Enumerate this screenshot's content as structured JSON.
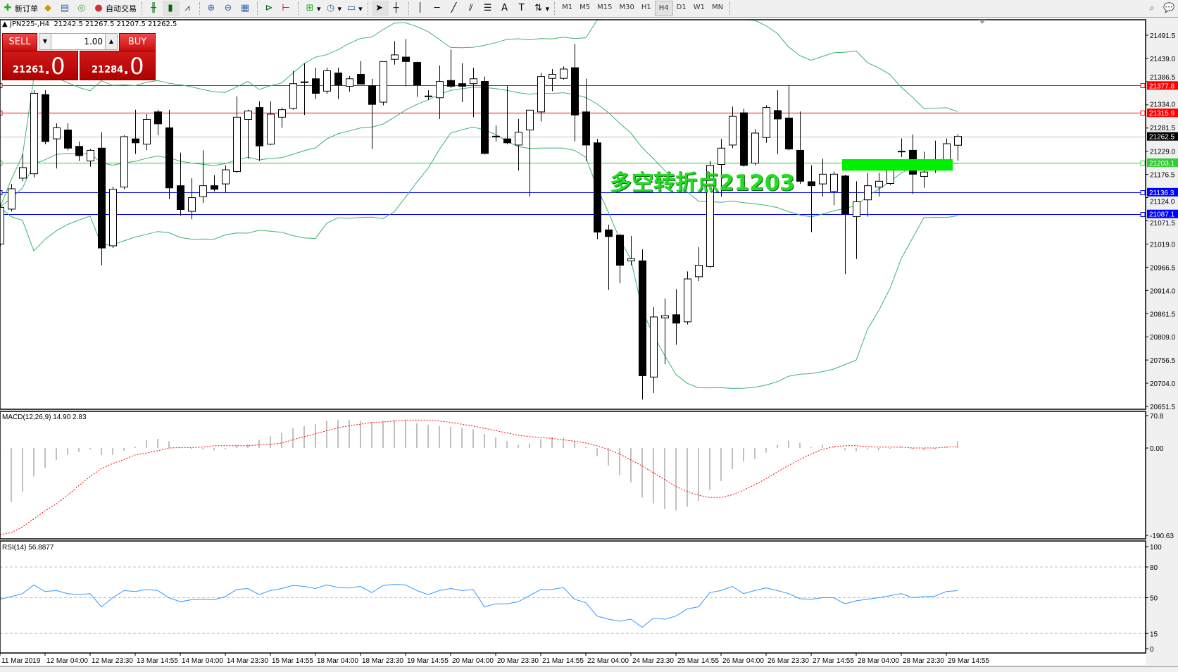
{
  "toolbar": {
    "new_order_label": "新订单",
    "auto_trade_label": "自动交易",
    "timeframes": [
      "M1",
      "M5",
      "M15",
      "M30",
      "H1",
      "H4",
      "D1",
      "W1",
      "MN"
    ],
    "active_timeframe": "H4"
  },
  "chart_header": {
    "symbol": "JPN225-,H4",
    "ohlc": "21242.5 21267.5 21207.5 21262.5"
  },
  "one_click": {
    "sell_label": "SELL",
    "buy_label": "BUY",
    "lot": "1.00",
    "sell_price_main": "21261",
    "sell_price_frac": ".0",
    "buy_price_main": "21284",
    "buy_price_frac": ".0"
  },
  "annotation": {
    "text": "多空转折点21203",
    "color": "#22dd22",
    "zone_price_top": 21211,
    "zone_price_bottom": 21185
  },
  "chart_data": {
    "type": "candlestick",
    "price_axis_ticks": [
      "21491.5",
      "21439.0",
      "21386.5",
      "21334.0",
      "21281.5",
      "21229.0",
      "21176.5",
      "21124.0",
      "21071.5",
      "21019.0",
      "20966.5",
      "20914.0",
      "20861.5",
      "20809.0",
      "20756.5",
      "20704.0",
      "20651.5"
    ],
    "price_range": [
      20651.5,
      21491.5
    ],
    "time_labels": [
      "11 Mar 2019",
      "12 Mar 04:00",
      "12 Mar 23:30",
      "13 Mar 14:55",
      "14 Mar 04:00",
      "14 Mar 23:30",
      "15 Mar 14:55",
      "18 Mar 04:00",
      "18 Mar 23:30",
      "19 Mar 14:55",
      "20 Mar 04:00",
      "20 Mar 23:30",
      "21 Mar 14:55",
      "22 Mar 04:00",
      "24 Mar 23:30",
      "25 Mar 14:55",
      "26 Mar 04:00",
      "26 Mar 23:30",
      "27 Mar 14:55",
      "28 Mar 04:00",
      "28 Mar 23:30",
      "29 Mar 14:55"
    ],
    "horizontal_lines": [
      {
        "price": 21377.8,
        "label": "21377.8",
        "color": "#ff0000"
      },
      {
        "price": 21315.9,
        "label": "21315.9",
        "color": "#ff0000"
      },
      {
        "price": 21262.5,
        "label": "21262.5",
        "color": "#c0c0c0",
        "label_bg": "#000000"
      },
      {
        "price": 21203.1,
        "label": "21203.1",
        "color": "#33cc33"
      },
      {
        "price": 21136.3,
        "label": "21136.3",
        "color": "#0000ff"
      },
      {
        "price": 21087.1,
        "label": "21087.1",
        "color": "#0000ff"
      }
    ],
    "bollinger": {
      "period": 20,
      "deviation": 2,
      "color": "#3cb371"
    },
    "candles_ohlc": [
      [
        21019,
        21112,
        21014,
        21102
      ],
      [
        21098,
        21155,
        21093,
        21144
      ],
      [
        21168,
        21223,
        21161,
        21192
      ],
      [
        21178,
        21367,
        21170,
        21360
      ],
      [
        21357,
        21367,
        21245,
        21251
      ],
      [
        21257,
        21292,
        21190,
        21282
      ],
      [
        21277,
        21292,
        21231,
        21236
      ],
      [
        21240,
        21251,
        21207,
        21219
      ],
      [
        21207,
        21234,
        21194,
        21231
      ],
      [
        21236,
        21272,
        20971,
        21010
      ],
      [
        21015,
        21149,
        21010,
        21143
      ],
      [
        21148,
        21265,
        21143,
        21262
      ],
      [
        21257,
        21323,
        21223,
        21248
      ],
      [
        21245,
        21313,
        21231,
        21301
      ],
      [
        21318,
        21323,
        21265,
        21291
      ],
      [
        21282,
        21323,
        21121,
        21146
      ],
      [
        21151,
        21226,
        21083,
        21097
      ],
      [
        21093,
        21168,
        21075,
        21124
      ],
      [
        21126,
        21231,
        21112,
        21151
      ],
      [
        21151,
        21175,
        21138,
        21143
      ],
      [
        21155,
        21197,
        21136,
        21187
      ],
      [
        21183,
        21353,
        21180,
        21306
      ],
      [
        21301,
        21323,
        21212,
        21320
      ],
      [
        21328,
        21342,
        21207,
        21241
      ],
      [
        21245,
        21342,
        21243,
        21313
      ],
      [
        21306,
        21328,
        21282,
        21323
      ],
      [
        21326,
        21411,
        21323,
        21382
      ],
      [
        21384,
        21428,
        21311,
        21386
      ],
      [
        21393,
        21418,
        21347,
        21360
      ],
      [
        21365,
        21418,
        21359,
        21411
      ],
      [
        21406,
        21418,
        21347,
        21379
      ],
      [
        21376,
        21399,
        21364,
        21393
      ],
      [
        21403,
        21433,
        21381,
        21381
      ],
      [
        21377,
        21393,
        21234,
        21335
      ],
      [
        21340,
        21432,
        21333,
        21432
      ],
      [
        21437,
        21478,
        21425,
        21447
      ],
      [
        21442,
        21483,
        21376,
        21432
      ],
      [
        21430,
        21432,
        21352,
        21379
      ],
      [
        21353,
        21367,
        21345,
        21354
      ],
      [
        21350,
        21423,
        21302,
        21387
      ],
      [
        21389,
        21459,
        21372,
        21376
      ],
      [
        21382,
        21428,
        21340,
        21376
      ],
      [
        21382,
        21418,
        21306,
        21393
      ],
      [
        21387,
        21398,
        21222,
        21224
      ],
      [
        21262,
        21287,
        21251,
        21263
      ],
      [
        21257,
        21377,
        21245,
        21248
      ],
      [
        21243,
        21302,
        21185,
        21272
      ],
      [
        21277,
        21323,
        21126,
        21322
      ],
      [
        21318,
        21406,
        21296,
        21398
      ],
      [
        21394,
        21415,
        21365,
        21403
      ],
      [
        21394,
        21421,
        21391,
        21415
      ],
      [
        21418,
        21472,
        21251,
        21311
      ],
      [
        21318,
        21393,
        21207,
        21243
      ],
      [
        21248,
        21257,
        21030,
        21046
      ],
      [
        21051,
        21063,
        20915,
        21036
      ],
      [
        21039,
        21042,
        20930,
        20971
      ],
      [
        20981,
        21037,
        20971,
        20986
      ],
      [
        20981,
        21007,
        20667,
        20721
      ],
      [
        20718,
        20876,
        20682,
        20854
      ],
      [
        20852,
        20896,
        20747,
        20857
      ],
      [
        20859,
        20917,
        20791,
        20840
      ],
      [
        20843,
        20957,
        20837,
        20940
      ],
      [
        20945,
        21012,
        20935,
        20971
      ],
      [
        20968,
        21207,
        20965,
        21197
      ],
      [
        21199,
        21257,
        21126,
        21236
      ],
      [
        21243,
        21330,
        21236,
        21308
      ],
      [
        21316,
        21325,
        21194,
        21197
      ],
      [
        21202,
        21279,
        21197,
        21270
      ],
      [
        21260,
        21333,
        21248,
        21328
      ],
      [
        21321,
        21367,
        21223,
        21302
      ],
      [
        21304,
        21379,
        21231,
        21234
      ],
      [
        21231,
        21319,
        21155,
        21161
      ],
      [
        21160,
        21197,
        21046,
        21151
      ],
      [
        21155,
        21212,
        21126,
        21177
      ],
      [
        21138,
        21183,
        21107,
        21177
      ],
      [
        21173,
        21176,
        20951,
        21087
      ],
      [
        21081,
        21161,
        20985,
        21115
      ],
      [
        21119,
        21180,
        21081,
        21151
      ],
      [
        21148,
        21180,
        21126,
        21161
      ],
      [
        21156,
        21209,
        21153,
        21206
      ],
      [
        21228,
        21258,
        21216,
        21229
      ],
      [
        21231,
        21267,
        21132,
        21177
      ],
      [
        21172,
        21228,
        21146,
        21182
      ],
      [
        21204,
        21253,
        21180,
        21207
      ],
      [
        21194,
        21258,
        21190,
        21246
      ],
      [
        21242.5,
        21267.5,
        21207.5,
        21262.5
      ]
    ],
    "macd": {
      "label": "MACD(12,26,9) 14.90 2.83",
      "axis_ticks": [
        "70.8",
        "0.00",
        "-190.63"
      ],
      "range": [
        -190.63,
        70.8
      ],
      "histogram_color": "#c0c0c0",
      "signal_color": "#ff0000",
      "main": [
        0,
        -118,
        -95,
        -62,
        -43,
        -26,
        -15,
        -9,
        -3,
        -15,
        -15,
        -6,
        3,
        17,
        20,
        15,
        1,
        -2,
        -3,
        -5,
        -3,
        6,
        8,
        18,
        26,
        33,
        43,
        48,
        52,
        59,
        61,
        61,
        59,
        57,
        59,
        61,
        61,
        54,
        51,
        48,
        46,
        44,
        41,
        31,
        23,
        15,
        7,
        10,
        20,
        23,
        23,
        15,
        3,
        -18,
        -39,
        -59,
        -75,
        -108,
        -121,
        -133,
        -136,
        -128,
        -116,
        -92,
        -72,
        -46,
        -30,
        -23,
        -10,
        7,
        16,
        11,
        2,
        7,
        3,
        -5,
        -7,
        -3,
        -5,
        -2,
        2,
        -3,
        -5,
        -3,
        3,
        14.9
      ],
      "signal": [
        -189,
        -185,
        -172,
        -155,
        -137,
        -122,
        -103,
        -82,
        -62,
        -45,
        -34,
        -25,
        -15,
        -11,
        -6,
        0,
        1,
        1,
        2,
        5,
        5,
        5,
        5,
        7,
        8,
        11,
        18,
        25,
        31,
        38,
        44,
        49,
        52,
        56,
        57,
        59,
        61,
        61,
        61,
        59,
        56,
        52,
        48,
        43,
        38,
        33,
        28,
        25,
        23,
        21,
        18,
        15,
        11,
        5,
        -3,
        -13,
        -26,
        -39,
        -54,
        -69,
        -84,
        -95,
        -103,
        -108,
        -108,
        -102,
        -92,
        -80,
        -67,
        -52,
        -38,
        -25,
        -13,
        -3,
        3,
        5,
        5,
        3,
        2,
        2,
        2,
        0,
        0,
        0,
        2,
        2.83
      ]
    },
    "rsi": {
      "label": "RSI(14) 56.8877",
      "axis_ticks": [
        "100",
        "80",
        "50",
        "15",
        "0"
      ],
      "levels": [
        80,
        50,
        15
      ],
      "range": [
        0,
        100
      ],
      "color": "#3399ff",
      "values": [
        48.5,
        51,
        54,
        62.5,
        56,
        57,
        54,
        53,
        54,
        41,
        50,
        57,
        56,
        58,
        57,
        50,
        46,
        48,
        48.5,
        48,
        51,
        58,
        59,
        53,
        57,
        59,
        62,
        61,
        59,
        62.5,
        60,
        59.5,
        61,
        55,
        62,
        63,
        62.5,
        57,
        53,
        57,
        59,
        57,
        58,
        41,
        44,
        44,
        46,
        52,
        58,
        58,
        60,
        48.5,
        45,
        32,
        29,
        27,
        29,
        21,
        30,
        29,
        32,
        39,
        41,
        55,
        57,
        61,
        54,
        57,
        59.5,
        57,
        54,
        49,
        48.5,
        50,
        50,
        44,
        47,
        48.5,
        50,
        52,
        54,
        50,
        51,
        51.5,
        56,
        56.89
      ]
    }
  }
}
